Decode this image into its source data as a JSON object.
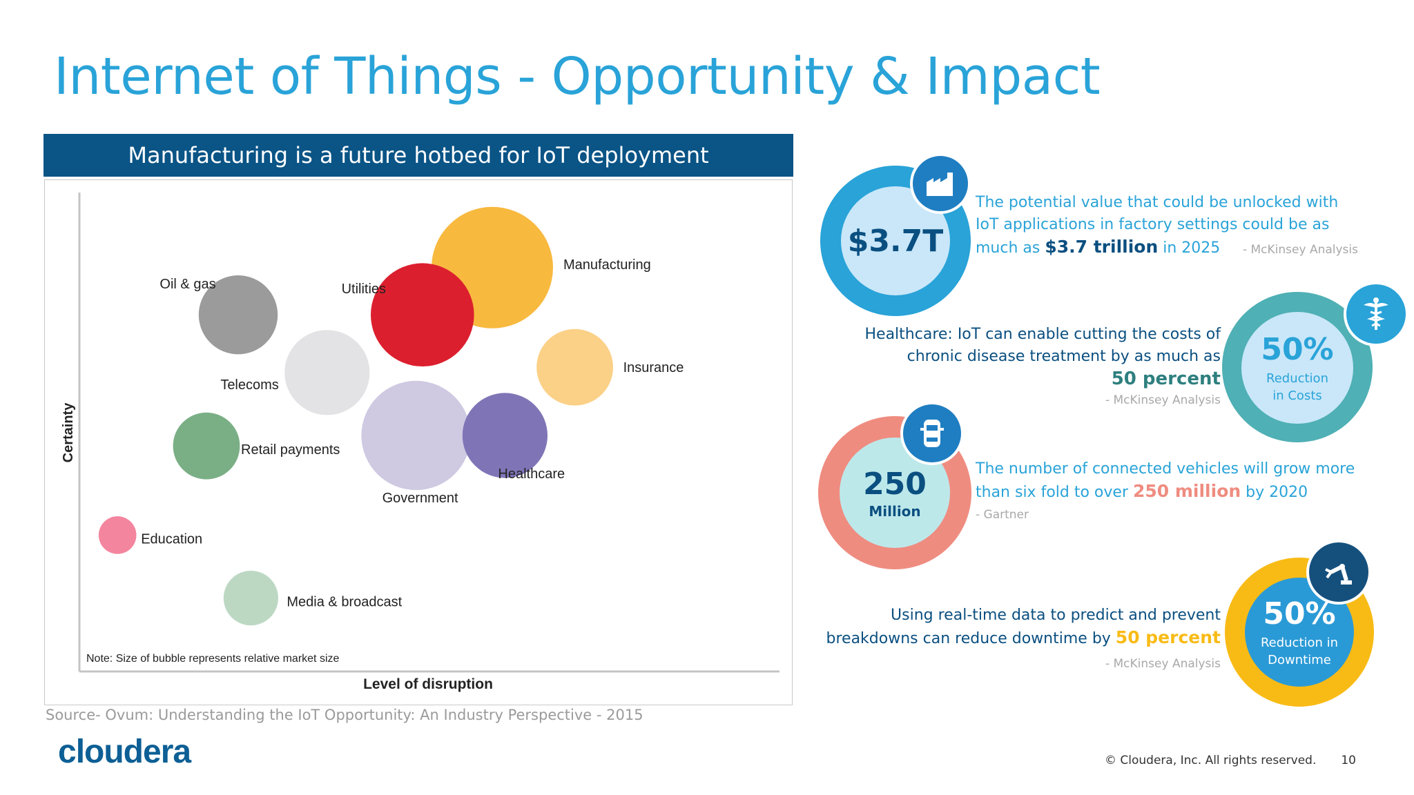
{
  "title": "Internet of Things - Opportunity & Impact",
  "banner": "Manufacturing is a future hotbed for IoT deployment",
  "source": "Source- Ovum: Understanding the IoT Opportunity: An Industry Perspective - 2015",
  "logo": "cloudera",
  "copyright": "© Cloudera, Inc. All rights reserved.",
  "page_number": "10",
  "chart_data": {
    "type": "scatter",
    "subtype": "bubble",
    "xlabel": "Level of disruption",
    "ylabel": "Certainty",
    "note": "Note: Size of bubble represents relative market size",
    "points": [
      {
        "label": "Manufacturing",
        "x": 6.5,
        "y": 7.7,
        "size": 10,
        "color": "#f8b93f"
      },
      {
        "label": "Utilities",
        "x": 5.4,
        "y": 6.8,
        "size": 8.5,
        "color": "#dc1f2e"
      },
      {
        "label": "Oil & gas",
        "x": 2.5,
        "y": 6.8,
        "size": 6.5,
        "color": "#9b9b9b"
      },
      {
        "label": "Telecoms",
        "x": 3.9,
        "y": 5.7,
        "size": 7,
        "color": "#e3e3e6"
      },
      {
        "label": "Insurance",
        "x": 7.8,
        "y": 5.8,
        "size": 6.3,
        "color": "#fbd188"
      },
      {
        "label": "Government",
        "x": 5.3,
        "y": 4.5,
        "size": 9,
        "color": "#cfc9e2"
      },
      {
        "label": "Healthcare",
        "x": 6.7,
        "y": 4.5,
        "size": 7,
        "color": "#7f75b6"
      },
      {
        "label": "Retail payments",
        "x": 2.0,
        "y": 4.3,
        "size": 5.5,
        "color": "#7aaf86"
      },
      {
        "label": "Education",
        "x": 0.6,
        "y": 2.6,
        "size": 3.1,
        "color": "#f4859e"
      },
      {
        "label": "Media & broadcast",
        "x": 2.7,
        "y": 1.4,
        "size": 4.5,
        "color": "#bcd8c3"
      }
    ]
  },
  "stats": {
    "s1": {
      "value": "$3.7T",
      "text_a": "The potential value that could be unlocked with IoT applications in factory settings could be as much as ",
      "highlight": "$3.7 trillion",
      "text_b": " in 2025",
      "cite": "- McKinsey Analysis",
      "icon": "factory-icon",
      "color": "#29a3d8"
    },
    "s2": {
      "value": "50%",
      "sub": "Reduction in Costs",
      "text_a": "Healthcare: IoT can enable cutting the costs of chronic disease treatment by as much as",
      "highlight": "50 percent",
      "cite": "- McKinsey Analysis",
      "icon": "caduceus-icon",
      "color": "#4fb0b5"
    },
    "s3": {
      "value": "250",
      "sub": "Million",
      "text_a": "The number of connected vehicles will grow more than six fold to over ",
      "highlight": "250 million",
      "text_b": " by 2020",
      "cite": "- Gartner",
      "icon": "car-icon",
      "color": "#ef8c80"
    },
    "s4": {
      "value": "50%",
      "sub": "Reduction in Downtime",
      "text_a": "Using real-time data to predict and prevent breakdowns can reduce downtime by ",
      "highlight": "50 percent",
      "cite": "- McKinsey Analysis",
      "icon": "robot-arm-icon",
      "color": "#f8bb16"
    }
  }
}
